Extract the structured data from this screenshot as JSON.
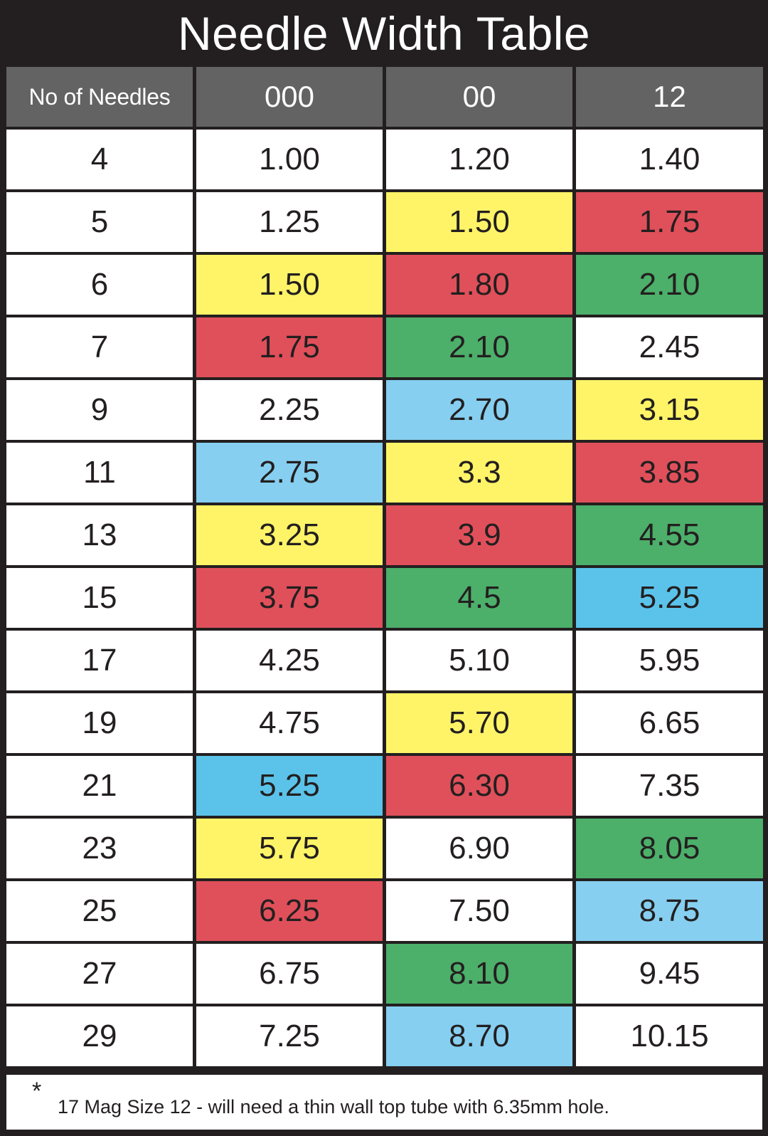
{
  "title": "Needle Width Table",
  "colors": {
    "background": "#231f20",
    "header": "#636363",
    "white": "#ffffff",
    "yellow": "#fff467",
    "red": "#e0505a",
    "green": "#4caf6a",
    "blue": "#5bc3ea",
    "lightblue": "#86cff0"
  },
  "headers": [
    "No of Needles",
    "000",
    "00",
    "12"
  ],
  "rows": [
    {
      "n": "4",
      "cells": [
        {
          "v": "1.00",
          "c": "white"
        },
        {
          "v": "1.20",
          "c": "white"
        },
        {
          "v": "1.40",
          "c": "white"
        }
      ]
    },
    {
      "n": "5",
      "cells": [
        {
          "v": "1.25",
          "c": "white"
        },
        {
          "v": "1.50",
          "c": "yellow"
        },
        {
          "v": "1.75",
          "c": "red"
        }
      ]
    },
    {
      "n": "6",
      "cells": [
        {
          "v": "1.50",
          "c": "yellow"
        },
        {
          "v": "1.80",
          "c": "red"
        },
        {
          "v": "2.10",
          "c": "green"
        }
      ]
    },
    {
      "n": "7",
      "cells": [
        {
          "v": "1.75",
          "c": "red"
        },
        {
          "v": "2.10",
          "c": "green"
        },
        {
          "v": "2.45",
          "c": "white"
        }
      ]
    },
    {
      "n": "9",
      "cells": [
        {
          "v": "2.25",
          "c": "white"
        },
        {
          "v": "2.70",
          "c": "lightblue"
        },
        {
          "v": "3.15",
          "c": "yellow"
        }
      ]
    },
    {
      "n": "11",
      "cells": [
        {
          "v": "2.75",
          "c": "lightblue"
        },
        {
          "v": "3.3",
          "c": "yellow"
        },
        {
          "v": "3.85",
          "c": "red"
        }
      ]
    },
    {
      "n": "13",
      "cells": [
        {
          "v": "3.25",
          "c": "yellow"
        },
        {
          "v": "3.9",
          "c": "red"
        },
        {
          "v": "4.55",
          "c": "green"
        }
      ]
    },
    {
      "n": "15",
      "cells": [
        {
          "v": "3.75",
          "c": "red"
        },
        {
          "v": "4.5",
          "c": "green"
        },
        {
          "v": "5.25",
          "c": "blue"
        }
      ]
    },
    {
      "n": "17",
      "cells": [
        {
          "v": "4.25",
          "c": "white"
        },
        {
          "v": "5.10",
          "c": "white"
        },
        {
          "v": "5.95",
          "c": "white"
        }
      ]
    },
    {
      "n": "19",
      "cells": [
        {
          "v": "4.75",
          "c": "white"
        },
        {
          "v": "5.70",
          "c": "yellow"
        },
        {
          "v": "6.65",
          "c": "white"
        }
      ]
    },
    {
      "n": "21",
      "cells": [
        {
          "v": "5.25",
          "c": "blue"
        },
        {
          "v": "6.30",
          "c": "red"
        },
        {
          "v": "7.35",
          "c": "white"
        }
      ]
    },
    {
      "n": "23",
      "cells": [
        {
          "v": "5.75",
          "c": "yellow"
        },
        {
          "v": "6.90",
          "c": "white"
        },
        {
          "v": "8.05",
          "c": "green"
        }
      ]
    },
    {
      "n": "25",
      "cells": [
        {
          "v": "6.25",
          "c": "red"
        },
        {
          "v": "7.50",
          "c": "white"
        },
        {
          "v": "8.75",
          "c": "lightblue"
        }
      ]
    },
    {
      "n": "27",
      "cells": [
        {
          "v": "6.75",
          "c": "white"
        },
        {
          "v": "8.10",
          "c": "green"
        },
        {
          "v": "9.45",
          "c": "white"
        }
      ]
    },
    {
      "n": "29",
      "cells": [
        {
          "v": "7.25",
          "c": "white"
        },
        {
          "v": "8.70",
          "c": "lightblue"
        },
        {
          "v": "10.15",
          "c": "white"
        }
      ]
    }
  ],
  "footnote": {
    "marker": "*",
    "text": "17 Mag Size 12 - will need a thin wall top tube with 6.35mm hole."
  }
}
